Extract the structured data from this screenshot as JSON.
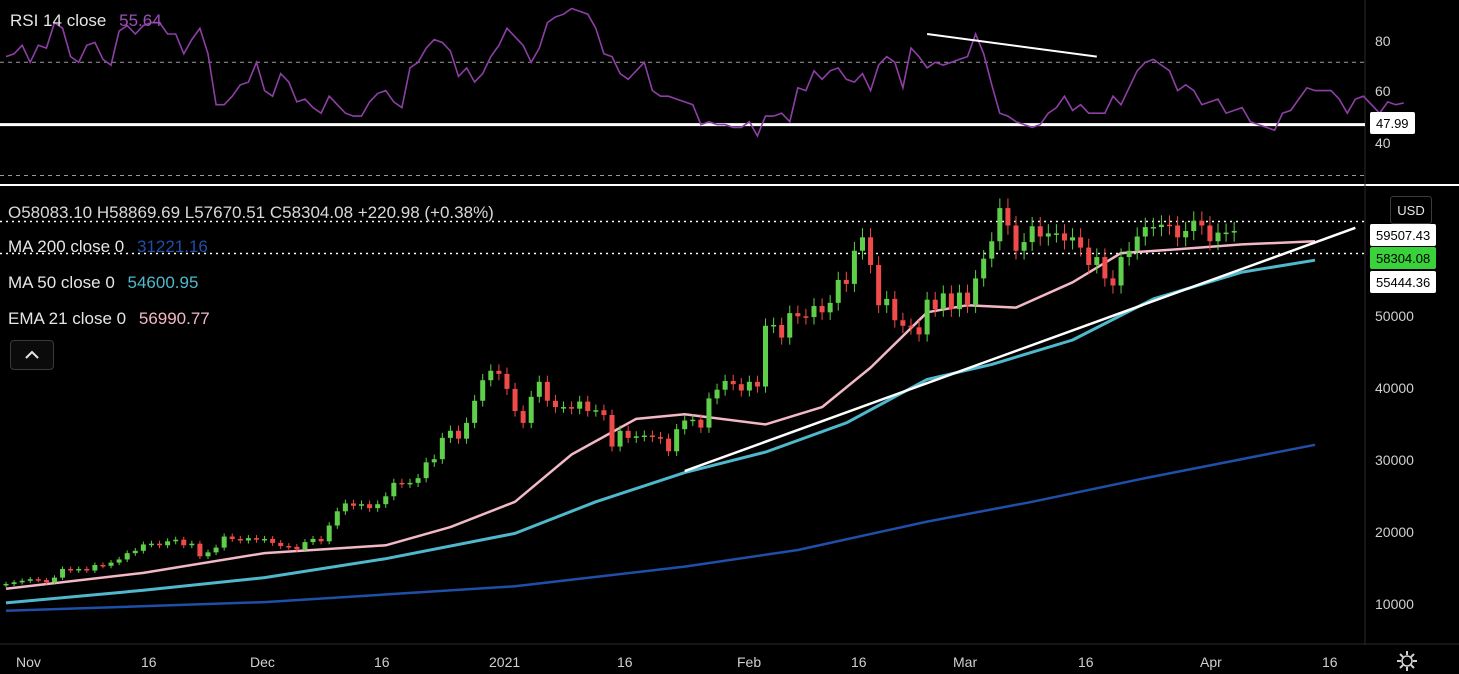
{
  "rsi_panel": {
    "indicator_label": "RSI 14 close",
    "indicator_value": "55.64",
    "support_level_tag": "47.99",
    "axis_ticks": [
      "80",
      "60",
      "40"
    ]
  },
  "price_panel": {
    "ohlc_text": "O58083.10 H58869.69 L57670.51 C58304.08 +220.98 (+0.38%)",
    "ma200_label": "MA 200 close 0",
    "ma200_value": "31221.16",
    "ma50_label": "MA 50 close 0",
    "ma50_value": "54600.95",
    "ema21_label": "EMA 21 close 0",
    "ema21_value": "56990.77",
    "currency_button": "USD",
    "resistance_tag": "59507.43",
    "last_price_tag": "58304.08",
    "support_tag": "55444.36",
    "axis_ticks": [
      "50000",
      "40000",
      "30000",
      "20000",
      "10000"
    ]
  },
  "time_axis": {
    "ticks": [
      "Nov",
      "16",
      "Dec",
      "16",
      "2021",
      "16",
      "Feb",
      "16",
      "Mar",
      "16",
      "Apr",
      "16"
    ]
  },
  "colors": {
    "background": "#000000",
    "rsi_line": "#8e3fa6",
    "rsi_value": "#9c4fb8",
    "ma200": "#1f4fa8",
    "ma50": "#4fb8cc",
    "ema21": "#f2b8c6",
    "candle_up": "#5fcf4b",
    "candle_down": "#ef4b4b",
    "trendline": "#ffffff",
    "last_price_bg": "#3ad23a"
  },
  "chart_data": [
    {
      "type": "line",
      "title": "RSI 14 close",
      "series": [
        {
          "name": "RSI 14 close",
          "values": [
            72,
            73,
            76,
            70,
            76,
            75,
            84,
            82,
            72,
            70,
            76,
            77,
            71,
            69,
            81,
            83,
            80,
            83,
            84,
            84,
            80,
            80,
            73,
            78,
            82,
            73,
            55,
            55,
            58,
            62,
            63,
            70,
            60,
            58,
            66,
            63,
            56,
            57,
            54,
            52,
            58,
            55,
            52,
            51,
            51,
            56,
            59,
            60,
            56,
            54,
            68,
            70,
            75,
            78,
            77,
            74,
            65,
            68,
            63,
            66,
            72,
            76,
            82,
            79,
            76,
            70,
            75,
            84,
            86,
            87,
            89,
            88,
            87,
            82,
            73,
            72,
            66,
            64,
            67,
            70,
            60,
            58,
            58,
            57,
            56,
            55,
            48,
            49,
            48,
            48,
            47,
            47,
            49,
            44,
            51,
            51,
            52,
            49,
            61,
            60,
            67,
            64,
            67,
            68,
            64,
            63,
            66,
            60,
            69,
            72,
            70,
            61,
            75,
            72,
            68,
            70,
            69,
            70,
            71,
            72,
            80,
            73,
            62,
            52,
            51,
            49,
            48,
            47,
            48,
            52,
            54,
            58,
            53,
            55,
            52,
            52,
            52,
            58,
            55,
            61,
            67,
            70,
            71,
            69,
            67,
            60,
            62,
            60,
            55,
            56,
            57,
            52,
            53,
            54,
            49,
            48,
            47,
            46,
            52,
            53,
            57,
            61,
            60,
            60,
            60,
            57,
            52,
            57,
            58,
            55,
            52,
            56,
            55,
            55.64
          ]
        }
      ],
      "x_range": [
        "Oct 30, 2020",
        "Apr 10, 2021"
      ],
      "ylim": [
        27,
        92
      ],
      "y_ticks": [
        40,
        60,
        80
      ],
      "reference_lines": [
        70,
        30
      ],
      "horizontal_level": 47.99,
      "divergence_line": {
        "from": [
          "Feb 21, 2021",
          80
        ],
        "to": [
          "Mar 14, 2021",
          72
        ]
      }
    },
    {
      "type": "candlestick",
      "title": "",
      "x_range": [
        "Oct 30, 2020",
        "Apr 10, 2021"
      ],
      "ylim": [
        6500,
        64000
      ],
      "y_ticks": [
        10000,
        20000,
        30000,
        40000,
        50000
      ],
      "y_scale": "linear",
      "x_ticks": [
        "Nov",
        "16",
        "Dec",
        "16",
        "2021",
        "16",
        "Feb",
        "16",
        "Mar",
        "16",
        "Apr",
        "16"
      ],
      "close": [
        13600,
        13800,
        14000,
        14200,
        14100,
        13800,
        14400,
        15500,
        15300,
        15500,
        15300,
        16000,
        15900,
        16300,
        16700,
        17500,
        17800,
        18600,
        18700,
        18500,
        19000,
        19200,
        18500,
        18700,
        17100,
        17600,
        18200,
        19600,
        19300,
        19100,
        19400,
        19200,
        19300,
        18800,
        18400,
        18300,
        18000,
        18900,
        19300,
        19000,
        21000,
        22800,
        23800,
        23500,
        23700,
        23200,
        23700,
        24700,
        26400,
        26300,
        26400,
        27000,
        29000,
        29400,
        32100,
        33000,
        32000,
        34000,
        36800,
        39400,
        40600,
        40200,
        38300,
        35500,
        34000,
        37300,
        39200,
        36800,
        36000,
        36000,
        35800,
        36700,
        35500,
        35600,
        35000,
        31000,
        33000,
        32100,
        32300,
        32400,
        32200,
        32000,
        30400,
        33200,
        34300,
        34400,
        33400,
        37100,
        38200,
        39300,
        38900,
        38100,
        39200,
        38600,
        46300,
        46400,
        44800,
        47900,
        47500,
        47400,
        48800,
        48000,
        49200,
        52100,
        51600,
        55800,
        57500,
        54000,
        48900,
        49700,
        47000,
        46300,
        46100,
        45200,
        49600,
        48400,
        50400,
        48400,
        50500,
        48900,
        52300,
        54800,
        57000,
        61200,
        59000,
        55800,
        56900,
        58900,
        57600,
        58000,
        58000,
        57100,
        57500,
        56200,
        54000,
        55000,
        52300,
        51400,
        55000,
        55800,
        57600,
        58800,
        58800,
        59100,
        59000,
        57500,
        58300,
        59600,
        59000,
        57000,
        58100,
        58100,
        58304.08
      ],
      "price_ticks_legend": {
        "open": 58083.1,
        "high": 58869.69,
        "low": 57670.51,
        "close": 58304.08,
        "change": 220.98,
        "change_pct": 0.38
      },
      "series": [
        {
          "name": "MA 200 close 0",
          "last": 31221.16,
          "points": [
            [
              "Oct 30, 2020",
              10200
            ],
            [
              "Dec 1, 2020",
              11300
            ],
            [
              "Jan 1, 2021",
              13300
            ],
            [
              "Jan 22, 2021",
              15800
            ],
            [
              "Feb 5, 2021",
              17900
            ],
            [
              "Feb 21, 2021",
              21500
            ],
            [
              "Mar 6, 2021",
              24000
            ],
            [
              "Mar 20, 2021",
              27000
            ],
            [
              "Apr 10, 2021",
              31221
            ]
          ]
        },
        {
          "name": "MA 50 close 0",
          "last": 54600.95,
          "points": [
            [
              "Oct 30, 2020",
              11200
            ],
            [
              "Nov 16, 2020",
              12800
            ],
            [
              "Dec 1, 2020",
              14400
            ],
            [
              "Dec 16, 2020",
              16800
            ],
            [
              "Jan 1, 2021",
              20000
            ],
            [
              "Jan 11, 2021",
              24000
            ],
            [
              "Jan 22, 2021",
              27700
            ],
            [
              "Feb 1, 2021",
              30300
            ],
            [
              "Feb 11, 2021",
              34000
            ],
            [
              "Feb 21, 2021",
              39500
            ],
            [
              "Mar 1, 2021",
              41400
            ],
            [
              "Mar 11, 2021",
              44500
            ],
            [
              "Mar 21, 2021",
              49700
            ],
            [
              "Apr 1, 2021",
              53100
            ],
            [
              "Apr 10, 2021",
              54601
            ]
          ]
        },
        {
          "name": "EMA 21 close 0",
          "last": 56990.77,
          "points": [
            [
              "Oct 30, 2020",
              13000
            ],
            [
              "Nov 16, 2020",
              15000
            ],
            [
              "Dec 1, 2020",
              17500
            ],
            [
              "Dec 16, 2020",
              18500
            ],
            [
              "Dec 24, 2020",
              20800
            ],
            [
              "Jan 1, 2021",
              24000
            ],
            [
              "Jan 8, 2021",
              30000
            ],
            [
              "Jan 16, 2021",
              34500
            ],
            [
              "Jan 22, 2021",
              35100
            ],
            [
              "Feb 1, 2021",
              33800
            ],
            [
              "Feb 8, 2021",
              36000
            ],
            [
              "Feb 14, 2021",
              41000
            ],
            [
              "Feb 21, 2021",
              48000
            ],
            [
              "Feb 26, 2021",
              48900
            ],
            [
              "Mar 4, 2021",
              48600
            ],
            [
              "Mar 11, 2021",
              51800
            ],
            [
              "Mar 17, 2021",
              55500
            ],
            [
              "Mar 24, 2021",
              56000
            ],
            [
              "Apr 1, 2021",
              56600
            ],
            [
              "Apr 10, 2021",
              56991
            ]
          ]
        }
      ],
      "horizontal_levels": [
        59507.43,
        55444.36
      ],
      "trendlines": [
        {
          "from": [
            "Jan 22, 2021",
            27900
          ],
          "to": [
            "Apr 15, 2021",
            58700
          ]
        }
      ]
    }
  ]
}
